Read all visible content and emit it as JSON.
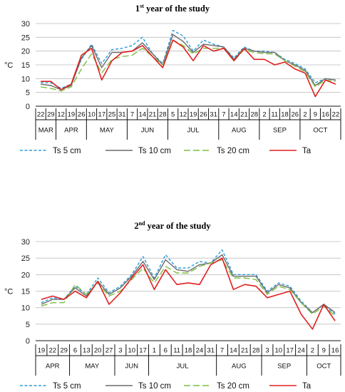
{
  "chart_data": [
    {
      "type": "line",
      "title_main": "1",
      "title_sup": "st",
      "title_rest": " year of the study",
      "ylabel": "°C",
      "ylim": [
        0,
        30
      ],
      "yticks": [
        0,
        5,
        10,
        15,
        20,
        25,
        30
      ],
      "grid": true,
      "legend_position": "bottom",
      "categories": [
        "22",
        "29",
        "12",
        "19",
        "26",
        "10",
        "17",
        "25",
        "31",
        "7",
        "14",
        "21",
        "28",
        "5",
        "12",
        "19",
        "26",
        "31",
        "7",
        "14",
        "21",
        "28",
        "2",
        "11",
        "18",
        "26",
        "2",
        "9",
        "16",
        "22"
      ],
      "groups": [
        {
          "label": "MAR",
          "count": 2
        },
        {
          "label": "APR",
          "count": 3
        },
        {
          "label": "MAY",
          "count": 4
        },
        {
          "label": "JUN",
          "count": 4
        },
        {
          "label": "JUL",
          "count": 5
        },
        {
          "label": "AUG",
          "count": 4
        },
        {
          "label": "SEP",
          "count": 4
        },
        {
          "label": "OCT",
          "count": 4
        }
      ],
      "series": [
        {
          "name": "Ts 5 cm",
          "color": "#2e9bd6",
          "dash": "4,2.5",
          "values": [
            8.5,
            8.5,
            6.5,
            8,
            17,
            22.5,
            15.5,
            20.5,
            21,
            22,
            25,
            19,
            15.5,
            27.5,
            25.5,
            20,
            24,
            22.5,
            21.5,
            17.5,
            21.5,
            20,
            20,
            19.5,
            17,
            15.5,
            13.5,
            8.5,
            10,
            9.5
          ]
        },
        {
          "name": "Ts 10 cm",
          "color": "#6b6b6b",
          "dash": "",
          "values": [
            8,
            7.5,
            6,
            7.5,
            17.5,
            22,
            14,
            19.5,
            19.5,
            20,
            23,
            19,
            15,
            26,
            23.5,
            19.5,
            22.5,
            22,
            21.5,
            17,
            21,
            20,
            19.5,
            19.5,
            16.5,
            15,
            13,
            7.5,
            10,
            9.5
          ]
        },
        {
          "name": "Ts 20 cm",
          "color": "#7cbf3f",
          "dash": "9,4",
          "values": [
            7,
            6.5,
            5.5,
            7,
            13.5,
            19,
            12,
            17,
            18,
            18.5,
            21,
            18,
            15,
            24,
            22,
            19,
            21,
            21,
            21,
            16.5,
            20.5,
            19.5,
            19,
            19,
            16.5,
            14.5,
            12.5,
            7,
            9.5,
            9
          ]
        },
        {
          "name": "Ta",
          "color": "#e02020",
          "dash": "",
          "values": [
            9,
            9,
            6,
            8,
            18.5,
            21,
            9.5,
            16.5,
            19.5,
            20,
            22,
            18,
            14,
            24,
            21.5,
            16.5,
            22,
            20,
            21,
            16.5,
            21,
            17,
            17,
            15,
            16,
            13.5,
            12,
            3.5,
            9.5,
            8
          ]
        }
      ]
    },
    {
      "type": "line",
      "title_main": "2",
      "title_sup": "nd",
      "title_rest": " year of the study",
      "ylabel": "°C",
      "ylim": [
        0,
        30
      ],
      "yticks": [
        0,
        5,
        10,
        15,
        20,
        25,
        30
      ],
      "grid": true,
      "legend_position": "bottom",
      "categories": [
        "19",
        "22",
        "29",
        "6",
        "13",
        "20",
        "27",
        "3",
        "10",
        "17",
        "1",
        "6",
        "11",
        "18",
        "24",
        "31",
        "7",
        "14",
        "21",
        "28",
        "3",
        "10",
        "17",
        "24",
        "2",
        "9",
        "16"
      ],
      "groups": [
        {
          "label": "APR",
          "count": 3
        },
        {
          "label": "MAY",
          "count": 4
        },
        {
          "label": "JUN",
          "count": 3
        },
        {
          "label": "JUL",
          "count": 6
        },
        {
          "label": "AUG",
          "count": 4
        },
        {
          "label": "SEP",
          "count": 4
        },
        {
          "label": "OCT",
          "count": 3
        }
      ],
      "series": [
        {
          "name": "Ts 5 cm",
          "color": "#2e9bd6",
          "dash": "4,2.5",
          "values": [
            11.5,
            13,
            12.5,
            16.5,
            14,
            19,
            14.5,
            16.5,
            20,
            25.5,
            19,
            26,
            22,
            22,
            24,
            23.5,
            27.5,
            20,
            20,
            20,
            15,
            17.5,
            16.5,
            12,
            8.5,
            11,
            8
          ]
        },
        {
          "name": "Ts 10 cm",
          "color": "#6b6b6b",
          "dash": "",
          "values": [
            11,
            12.5,
            12.5,
            16,
            13.5,
            18,
            14,
            16,
            19.5,
            24,
            18.5,
            24.5,
            21.5,
            21,
            23,
            23.5,
            26,
            19.5,
            19.5,
            19.5,
            14.5,
            17,
            16,
            11.5,
            8.5,
            11,
            8.5
          ]
        },
        {
          "name": "Ts 20 cm",
          "color": "#7cbf3f",
          "dash": "9,4",
          "values": [
            10.5,
            11.5,
            11.5,
            17,
            14,
            17.5,
            13.5,
            15,
            18.5,
            22,
            17.5,
            22.5,
            20.5,
            20.5,
            22.5,
            23.5,
            24.5,
            19,
            19,
            18.5,
            14,
            16.5,
            15.5,
            11.5,
            8,
            10.5,
            7.5
          ]
        },
        {
          "name": "Ta",
          "color": "#e02020",
          "dash": "",
          "values": [
            12.5,
            13.5,
            12.5,
            15,
            13,
            18,
            11,
            14.5,
            19,
            23,
            15.5,
            21.5,
            17,
            17.5,
            17,
            23,
            25,
            15.5,
            17,
            16.5,
            13,
            14,
            15,
            8,
            3.5,
            11,
            6
          ]
        }
      ]
    }
  ]
}
